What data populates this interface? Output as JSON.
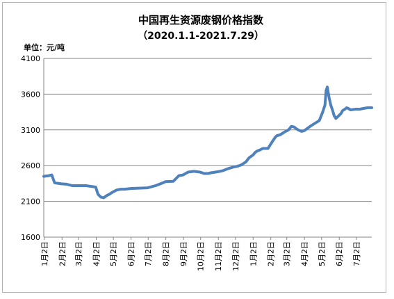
{
  "chart_data": {
    "type": "line",
    "title": "中国再生资源废钢价格指数",
    "subtitle": "（2020.1.1-2021.7.29）",
    "ylabel": "单位：元/吨",
    "xlabel": "",
    "ylim": [
      1600,
      4100
    ],
    "yticks": [
      "1600",
      "2100",
      "2600",
      "3100",
      "3600",
      "4100"
    ],
    "grid": true,
    "legend": "none",
    "line_color": "#4f81bd",
    "x_range": [
      "2020-01-01",
      "2021-07-29"
    ],
    "categories": [
      "1月2日",
      "2月2日",
      "3月2日",
      "4月2日",
      "5月2日",
      "6月2日",
      "7月2日",
      "8月2日",
      "9月2日",
      "10月2日",
      "11月2日",
      "12月2日",
      "1月2日",
      "2月2日",
      "3月2日",
      "4月2日",
      "5月2日",
      "6月2日",
      "7月2日"
    ],
    "category_dates": [
      "2020-01-02",
      "2020-02-02",
      "2020-03-02",
      "2020-04-02",
      "2020-05-02",
      "2020-06-02",
      "2020-07-02",
      "2020-08-02",
      "2020-09-02",
      "2020-10-02",
      "2020-11-02",
      "2020-12-02",
      "2021-01-02",
      "2021-02-02",
      "2021-03-02",
      "2021-04-02",
      "2021-05-02",
      "2021-06-02",
      "2021-07-02"
    ],
    "series": [
      {
        "x": [
          "2020-01-01",
          "2020-01-05",
          "2020-01-10",
          "2020-01-15",
          "2020-01-20",
          "2020-02-01",
          "2020-02-10",
          "2020-02-20",
          "2020-03-01",
          "2020-03-15",
          "2020-04-01",
          "2020-04-05",
          "2020-04-10",
          "2020-04-15",
          "2020-04-20",
          "2020-04-25",
          "2020-05-01",
          "2020-05-08",
          "2020-05-15",
          "2020-05-22",
          "2020-06-01",
          "2020-06-15",
          "2020-07-01",
          "2020-07-15",
          "2020-07-28",
          "2020-08-01",
          "2020-08-15",
          "2020-08-25",
          "2020-09-01",
          "2020-09-10",
          "2020-09-20",
          "2020-10-01",
          "2020-10-08",
          "2020-10-15",
          "2020-10-20",
          "2020-10-28",
          "2020-11-05",
          "2020-11-10",
          "2020-11-20",
          "2020-11-28",
          "2020-12-05",
          "2020-12-12",
          "2020-12-20",
          "2020-12-26",
          "2021-01-02",
          "2021-01-05",
          "2021-01-08",
          "2021-01-14",
          "2021-01-19",
          "2021-01-28",
          "2021-02-05",
          "2021-02-10",
          "2021-02-13",
          "2021-02-18",
          "2021-02-28",
          "2021-03-05",
          "2021-03-10",
          "2021-03-15",
          "2021-03-18",
          "2021-03-22",
          "2021-03-28",
          "2021-04-02",
          "2021-04-07",
          "2021-04-12",
          "2021-04-20",
          "2021-04-28",
          "2021-05-04",
          "2021-05-08",
          "2021-05-10",
          "2021-05-12",
          "2021-05-15",
          "2021-05-18",
          "2021-05-21",
          "2021-05-24",
          "2021-05-27",
          "2021-05-31",
          "2021-06-05",
          "2021-06-08",
          "2021-06-12",
          "2021-06-15",
          "2021-06-18",
          "2021-06-22",
          "2021-07-01",
          "2021-07-08",
          "2021-07-14",
          "2021-07-22",
          "2021-07-29"
        ],
        "values": [
          2450,
          2455,
          2460,
          2470,
          2360,
          2345,
          2340,
          2320,
          2320,
          2320,
          2300,
          2200,
          2160,
          2150,
          2180,
          2200,
          2230,
          2260,
          2270,
          2270,
          2280,
          2285,
          2290,
          2320,
          2360,
          2375,
          2380,
          2460,
          2470,
          2510,
          2520,
          2510,
          2490,
          2490,
          2500,
          2510,
          2520,
          2530,
          2560,
          2580,
          2590,
          2610,
          2650,
          2710,
          2750,
          2780,
          2800,
          2820,
          2840,
          2840,
          2940,
          3000,
          3020,
          3030,
          3080,
          3100,
          3150,
          3140,
          3120,
          3100,
          3080,
          3090,
          3120,
          3150,
          3190,
          3230,
          3350,
          3450,
          3650,
          3700,
          3560,
          3450,
          3380,
          3300,
          3260,
          3290,
          3330,
          3370,
          3390,
          3410,
          3400,
          3380,
          3390,
          3390,
          3400,
          3410,
          3410
        ]
      }
    ]
  }
}
